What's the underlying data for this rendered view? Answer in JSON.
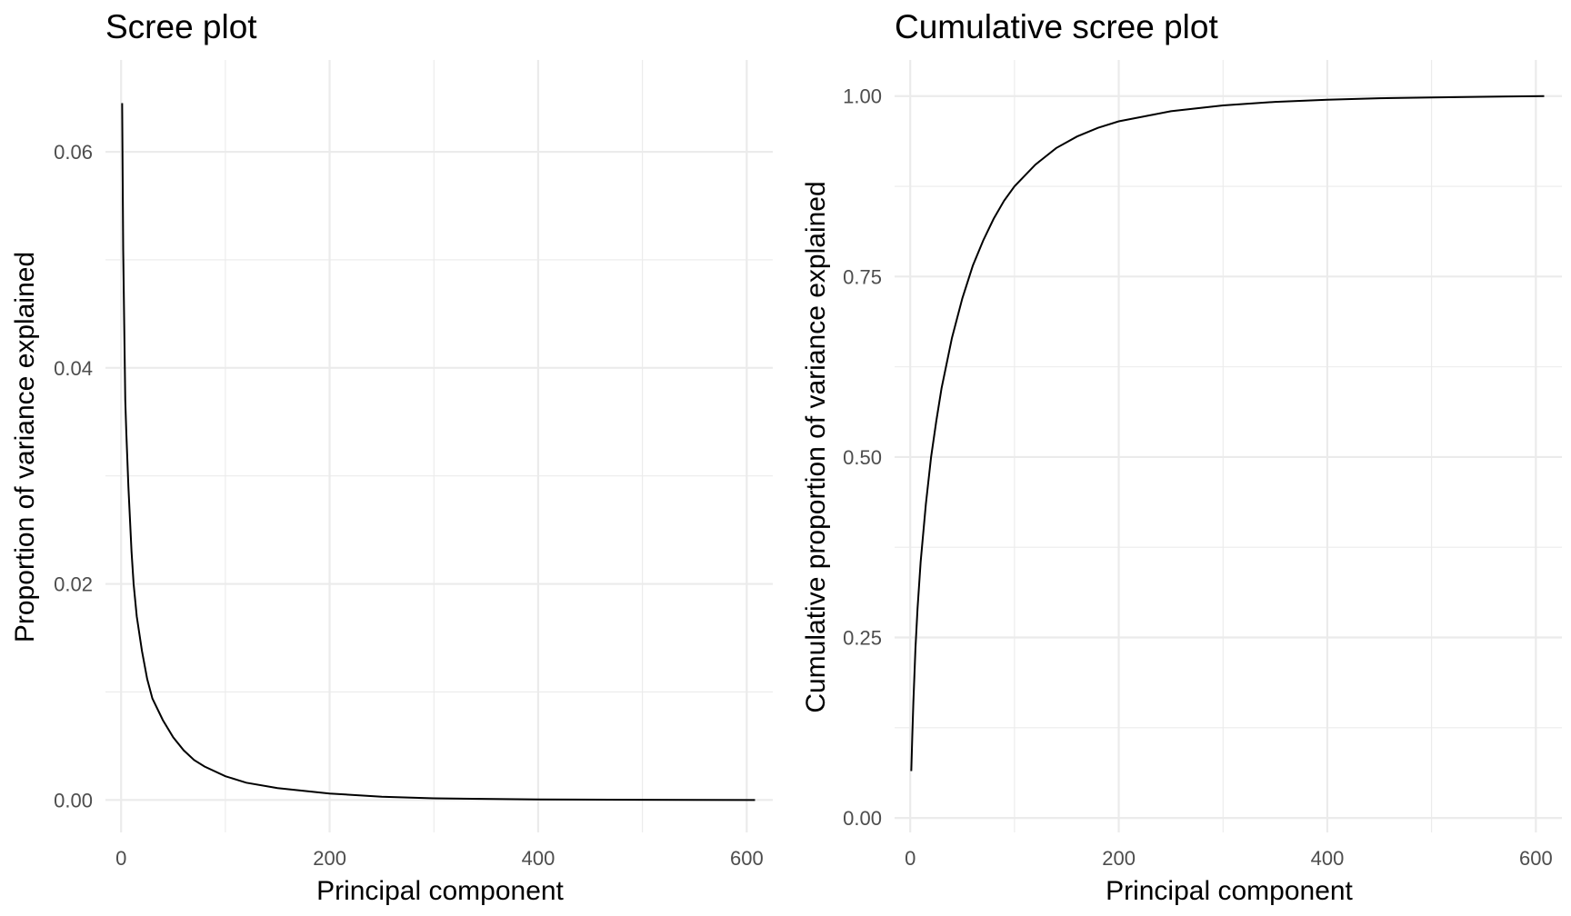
{
  "chart_data": [
    {
      "type": "line",
      "title": "Scree plot",
      "xlabel": "Principal component",
      "ylabel": "Proportion of variance explained",
      "xlim": [
        -15,
        625
      ],
      "ylim": [
        -0.003,
        0.0685
      ],
      "x_ticks": [
        0,
        200,
        400,
        600
      ],
      "x_tick_labels": [
        "0",
        "200",
        "400",
        "600"
      ],
      "y_ticks": [
        0.0,
        0.02,
        0.04,
        0.06
      ],
      "y_tick_labels": [
        "0.00",
        "0.02",
        "0.04",
        "0.06"
      ],
      "grid": true,
      "legend": "none",
      "line_color": "#000000",
      "series": [
        {
          "x": [
            1,
            2,
            3,
            4,
            5,
            7,
            10,
            12,
            15,
            20,
            25,
            30,
            40,
            50,
            60,
            70,
            80,
            100,
            120,
            150,
            200,
            250,
            300,
            400,
            500,
            608
          ],
          "values": [
            0.0645,
            0.051,
            0.044,
            0.037,
            0.034,
            0.029,
            0.023,
            0.02,
            0.017,
            0.0138,
            0.0112,
            0.0094,
            0.0074,
            0.0058,
            0.0046,
            0.0037,
            0.0031,
            0.0022,
            0.0016,
            0.0011,
            0.0006,
            0.0003,
            0.00015,
            5e-05,
            2e-05,
            0.0
          ]
        }
      ]
    },
    {
      "type": "line",
      "title": "Cumulative scree plot",
      "xlabel": "Principal component",
      "ylabel": "Cumulative proportion of variance explained",
      "xlim": [
        -15,
        625
      ],
      "ylim": [
        -0.02,
        1.05
      ],
      "x_ticks": [
        0,
        200,
        400,
        600
      ],
      "x_tick_labels": [
        "0",
        "200",
        "400",
        "600"
      ],
      "y_ticks": [
        0.0,
        0.25,
        0.5,
        0.75,
        1.0
      ],
      "y_tick_labels": [
        "0.00",
        "0.25",
        "0.50",
        "0.75",
        "1.00"
      ],
      "grid": true,
      "legend": "none",
      "line_color": "#000000",
      "series": [
        {
          "x": [
            1,
            2,
            3,
            5,
            7,
            10,
            15,
            20,
            25,
            30,
            40,
            50,
            60,
            70,
            80,
            90,
            100,
            120,
            140,
            160,
            180,
            200,
            250,
            300,
            350,
            400,
            450,
            500,
            550,
            608
          ],
          "values": [
            0.065,
            0.115,
            0.16,
            0.235,
            0.29,
            0.355,
            0.435,
            0.5,
            0.55,
            0.595,
            0.665,
            0.72,
            0.765,
            0.8,
            0.83,
            0.855,
            0.875,
            0.905,
            0.928,
            0.944,
            0.956,
            0.965,
            0.979,
            0.987,
            0.992,
            0.995,
            0.997,
            0.998,
            0.999,
            1.0
          ]
        }
      ]
    }
  ]
}
